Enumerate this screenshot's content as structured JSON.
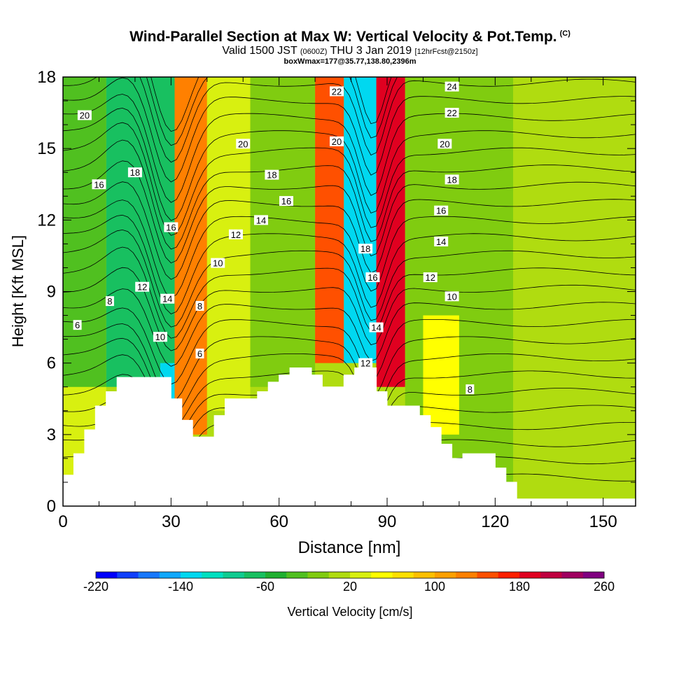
{
  "header": {
    "title": "Wind-Parallel Section at Max W: Vertical Velocity & Pot.Temp.",
    "copyright": "(C)",
    "valid_a": "Valid 1500 JST",
    "valid_small": "(0600Z)",
    "valid_b": "THU 3 Jan 2019",
    "forecast": "[12hrFcst@2150z]",
    "box_info": "boxWmax=177@35.77,138.80,2396m"
  },
  "chart_data": {
    "type": "heatmap",
    "xlabel": "Distance [nm]",
    "ylabel": "Height [Kft MSL]",
    "xlim": [
      0,
      159
    ],
    "ylim": [
      0,
      18
    ],
    "x_ticks": [
      0,
      30,
      60,
      90,
      120,
      150
    ],
    "y_ticks": [
      0,
      3,
      6,
      9,
      12,
      15,
      18
    ],
    "colorbar": {
      "label": "Vertical Velocity [cm/s]",
      "min": -220,
      "max": 260,
      "step": 20,
      "tick_values": [
        -220,
        -140,
        -60,
        20,
        100,
        180,
        260
      ],
      "colors": [
        "#0000ff",
        "#1040ff",
        "#1878ff",
        "#10a8ff",
        "#00d8f0",
        "#00e0c0",
        "#10cc90",
        "#18c060",
        "#20b030",
        "#50c020",
        "#80cc10",
        "#b0dc10",
        "#d8f010",
        "#ffff00",
        "#ffe000",
        "#ffc000",
        "#ffa000",
        "#ff8000",
        "#ff5000",
        "#ff2000",
        "#e00020",
        "#c00040",
        "#a00060",
        "#800080"
      ]
    },
    "vertical_velocity_cells": [
      {
        "x": [
          0,
          12
        ],
        "y": [
          0,
          5
        ],
        "w": 30
      },
      {
        "x": [
          0,
          12
        ],
        "y": [
          5,
          18
        ],
        "w": -35
      },
      {
        "x": [
          12,
          31
        ],
        "y": [
          5,
          18
        ],
        "w": -65
      },
      {
        "x": [
          27,
          31
        ],
        "y": [
          4,
          6
        ],
        "w": -130
      },
      {
        "x": [
          31,
          40
        ],
        "y": [
          3,
          18
        ],
        "w": 120
      },
      {
        "x": [
          40,
          52
        ],
        "y": [
          4,
          18
        ],
        "w": 20
      },
      {
        "x": [
          52,
          70
        ],
        "y": [
          5,
          18
        ],
        "w": -20
      },
      {
        "x": [
          70,
          78
        ],
        "y": [
          6,
          18
        ],
        "w": 140
      },
      {
        "x": [
          78,
          87
        ],
        "y": [
          6,
          18
        ],
        "w": -140
      },
      {
        "x": [
          87,
          95
        ],
        "y": [
          5,
          18
        ],
        "w": 190
      },
      {
        "x": [
          95,
          125
        ],
        "y": [
          1,
          18
        ],
        "w": -20
      },
      {
        "x": [
          100,
          110
        ],
        "y": [
          3,
          8
        ],
        "w": 40
      },
      {
        "x": [
          125,
          159
        ],
        "y": [
          1,
          18
        ],
        "w": 15
      }
    ],
    "terrain_kft": [
      {
        "x": 0,
        "h": 1.3
      },
      {
        "x": 3,
        "h": 2.2
      },
      {
        "x": 6,
        "h": 3.2
      },
      {
        "x": 9,
        "h": 4.2
      },
      {
        "x": 12,
        "h": 4.8
      },
      {
        "x": 15,
        "h": 5.4
      },
      {
        "x": 18,
        "h": 5.4
      },
      {
        "x": 21,
        "h": 5.4
      },
      {
        "x": 24,
        "h": 5.4
      },
      {
        "x": 27,
        "h": 5.4
      },
      {
        "x": 30,
        "h": 4.5
      },
      {
        "x": 33,
        "h": 3.6
      },
      {
        "x": 36,
        "h": 2.9
      },
      {
        "x": 39,
        "h": 2.9
      },
      {
        "x": 42,
        "h": 3.8
      },
      {
        "x": 45,
        "h": 4.5
      },
      {
        "x": 48,
        "h": 4.5
      },
      {
        "x": 51,
        "h": 4.5
      },
      {
        "x": 54,
        "h": 4.8
      },
      {
        "x": 57,
        "h": 5.2
      },
      {
        "x": 60,
        "h": 5.5
      },
      {
        "x": 63,
        "h": 5.8
      },
      {
        "x": 66,
        "h": 5.8
      },
      {
        "x": 69,
        "h": 5.5
      },
      {
        "x": 72,
        "h": 5.0
      },
      {
        "x": 75,
        "h": 5.0
      },
      {
        "x": 78,
        "h": 5.5
      },
      {
        "x": 81,
        "h": 5.8
      },
      {
        "x": 84,
        "h": 5.8
      },
      {
        "x": 87,
        "h": 4.8
      },
      {
        "x": 90,
        "h": 4.2
      },
      {
        "x": 93,
        "h": 4.2
      },
      {
        "x": 96,
        "h": 4.2
      },
      {
        "x": 99,
        "h": 3.8
      },
      {
        "x": 102,
        "h": 3.3
      },
      {
        "x": 105,
        "h": 2.6
      },
      {
        "x": 108,
        "h": 2.0
      },
      {
        "x": 111,
        "h": 2.2
      },
      {
        "x": 114,
        "h": 2.2
      },
      {
        "x": 117,
        "h": 2.2
      },
      {
        "x": 120,
        "h": 1.6
      },
      {
        "x": 123,
        "h": 1.0
      },
      {
        "x": 126,
        "h": 0.3
      },
      {
        "x": 159,
        "h": 0.3
      }
    ],
    "theta_contour_labels": [
      {
        "text": "20",
        "x": 6,
        "y": 16.4
      },
      {
        "text": "16",
        "x": 10,
        "y": 13.5
      },
      {
        "text": "18",
        "x": 20,
        "y": 14.0
      },
      {
        "text": "8",
        "x": 13,
        "y": 8.6
      },
      {
        "text": "6",
        "x": 4,
        "y": 7.6
      },
      {
        "text": "12",
        "x": 22,
        "y": 9.2
      },
      {
        "text": "10",
        "x": 27,
        "y": 7.1
      },
      {
        "text": "14",
        "x": 29,
        "y": 8.7
      },
      {
        "text": "16",
        "x": 30,
        "y": 11.7
      },
      {
        "text": "8",
        "x": 38,
        "y": 8.4
      },
      {
        "text": "6",
        "x": 38,
        "y": 6.4
      },
      {
        "text": "10",
        "x": 43,
        "y": 10.2
      },
      {
        "text": "12",
        "x": 48,
        "y": 11.4
      },
      {
        "text": "14",
        "x": 55,
        "y": 12.0
      },
      {
        "text": "16",
        "x": 62,
        "y": 12.8
      },
      {
        "text": "18",
        "x": 58,
        "y": 13.9
      },
      {
        "text": "20",
        "x": 50,
        "y": 15.2
      },
      {
        "text": "22",
        "x": 76,
        "y": 17.4
      },
      {
        "text": "20",
        "x": 76,
        "y": 15.3
      },
      {
        "text": "18",
        "x": 84,
        "y": 10.8
      },
      {
        "text": "16",
        "x": 86,
        "y": 9.6
      },
      {
        "text": "14",
        "x": 87,
        "y": 7.5
      },
      {
        "text": "12",
        "x": 84,
        "y": 6.0
      },
      {
        "text": "24",
        "x": 108,
        "y": 17.6
      },
      {
        "text": "22",
        "x": 108,
        "y": 16.5
      },
      {
        "text": "20",
        "x": 106,
        "y": 15.2
      },
      {
        "text": "18",
        "x": 108,
        "y": 13.7
      },
      {
        "text": "16",
        "x": 105,
        "y": 12.4
      },
      {
        "text": "14",
        "x": 105,
        "y": 11.1
      },
      {
        "text": "12",
        "x": 102,
        "y": 9.6
      },
      {
        "text": "10",
        "x": 108,
        "y": 8.8
      },
      {
        "text": "8",
        "x": 113,
        "y": 4.9
      }
    ]
  }
}
